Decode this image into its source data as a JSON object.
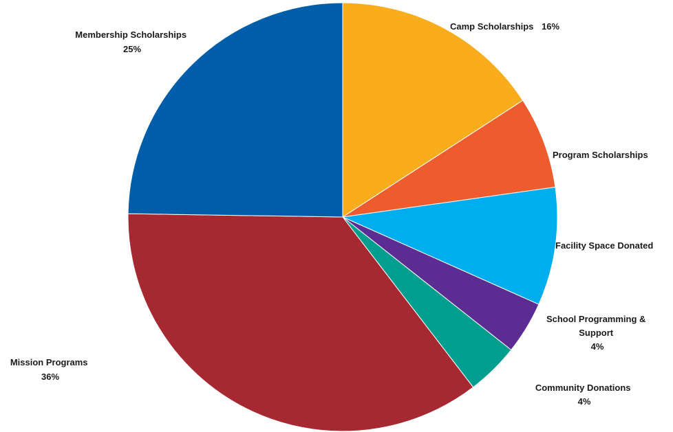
{
  "chart_data": {
    "type": "pie",
    "start_angle_deg": 0,
    "direction": "clockwise",
    "slices": [
      {
        "label": "Camp Scholarships",
        "value_label": "16%",
        "value": 16,
        "color": "#F9AD1C"
      },
      {
        "label": "Program Scholarships",
        "value_label": "",
        "value": 7,
        "color": "#EE5B2D"
      },
      {
        "label": "Facility Space Donated",
        "value_label": "",
        "value": 9,
        "color": "#00AEEF"
      },
      {
        "label": "School Programming & Support",
        "value_label": "4%",
        "value": 4,
        "color": "#5B2C91"
      },
      {
        "label": "Community Donations",
        "value_label": "4%",
        "value": 4,
        "color": "#009E8E"
      },
      {
        "label": "Mission Programs",
        "value_label": "36%",
        "value": 36,
        "color": "#A62830"
      },
      {
        "label": "Membership Scholarships",
        "value_label": "25%",
        "value": 25,
        "color": "#005DAA"
      }
    ]
  }
}
